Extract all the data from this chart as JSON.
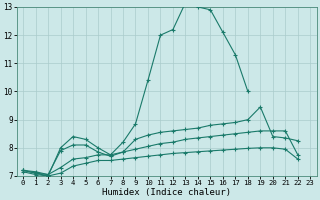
{
  "xlabel": "Humidex (Indice chaleur)",
  "background_color": "#cce8e8",
  "grid_color": "#aacccc",
  "line_color": "#1a7a6a",
  "xlim": [
    -0.5,
    23.5
  ],
  "ylim": [
    7,
    13
  ],
  "xticks": [
    0,
    1,
    2,
    3,
    4,
    5,
    6,
    7,
    8,
    9,
    10,
    11,
    12,
    13,
    14,
    15,
    16,
    17,
    18,
    19,
    20,
    21,
    22,
    23
  ],
  "yticks": [
    7,
    8,
    9,
    10,
    11,
    12,
    13
  ],
  "series1_y": [
    7.2,
    7.1,
    7.0,
    8.0,
    8.4,
    8.3,
    8.0,
    7.75,
    8.2,
    8.85,
    10.4,
    12.0,
    12.2,
    13.15,
    13.0,
    12.9,
    12.1,
    11.3,
    10.0,
    null,
    null,
    null,
    null,
    null
  ],
  "series2_y": [
    7.2,
    7.15,
    7.05,
    7.9,
    8.1,
    8.1,
    7.85,
    7.7,
    7.85,
    8.3,
    8.45,
    8.55,
    8.6,
    8.65,
    8.7,
    8.8,
    8.85,
    8.9,
    9.0,
    9.45,
    8.4,
    8.35,
    8.25,
    null
  ],
  "series3_y": [
    7.2,
    7.1,
    7.05,
    7.3,
    7.6,
    7.65,
    7.75,
    7.75,
    7.85,
    7.95,
    8.05,
    8.15,
    8.2,
    8.3,
    8.35,
    8.4,
    8.45,
    8.5,
    8.55,
    8.6,
    8.6,
    8.6,
    7.75,
    null
  ],
  "series4_y": [
    7.15,
    7.05,
    7.0,
    7.1,
    7.35,
    7.45,
    7.55,
    7.55,
    7.6,
    7.65,
    7.7,
    7.75,
    7.8,
    7.83,
    7.86,
    7.89,
    7.92,
    7.95,
    7.98,
    8.0,
    8.0,
    7.95,
    7.6,
    null
  ]
}
